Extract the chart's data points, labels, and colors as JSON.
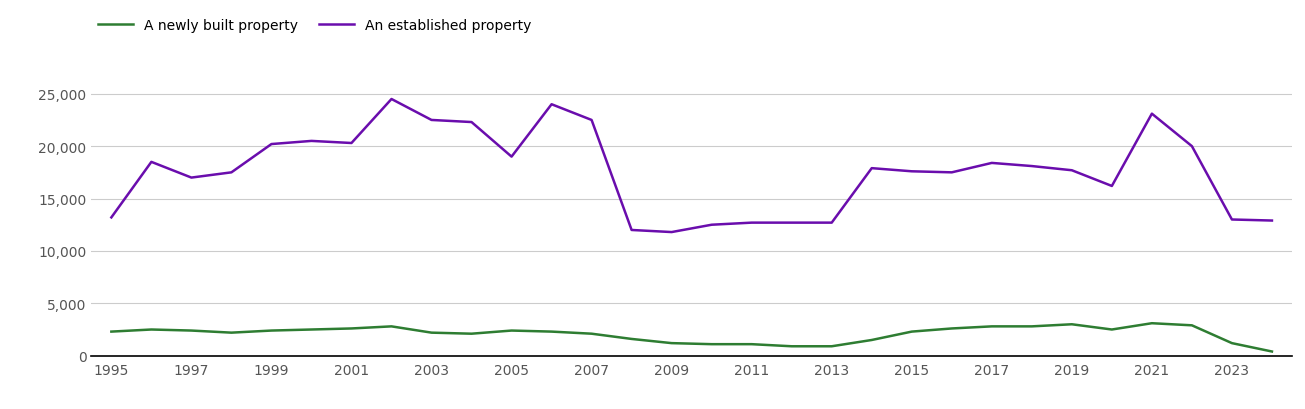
{
  "years": [
    1995,
    1996,
    1997,
    1998,
    1999,
    2000,
    2001,
    2002,
    2003,
    2004,
    2005,
    2006,
    2007,
    2008,
    2009,
    2010,
    2011,
    2012,
    2013,
    2014,
    2015,
    2016,
    2017,
    2018,
    2019,
    2020,
    2021,
    2022,
    2023,
    2024
  ],
  "newly_built": [
    2300,
    2500,
    2400,
    2200,
    2400,
    2500,
    2600,
    2800,
    2200,
    2100,
    2400,
    2300,
    2100,
    1600,
    1200,
    1100,
    1100,
    900,
    900,
    1500,
    2300,
    2600,
    2800,
    2800,
    3000,
    2500,
    3100,
    2900,
    1200,
    400
  ],
  "established": [
    13200,
    18500,
    17000,
    17500,
    20200,
    20500,
    20300,
    24500,
    22500,
    22300,
    19000,
    24000,
    22500,
    12000,
    11800,
    12500,
    12700,
    12700,
    12700,
    17900,
    17600,
    17500,
    18400,
    18100,
    17700,
    16200,
    23100,
    20000,
    13000,
    12900
  ],
  "newly_built_color": "#2e7d32",
  "established_color": "#6a0dad",
  "newly_built_label": "A newly built property",
  "established_label": "An established property",
  "ylim": [
    0,
    27000
  ],
  "yticks": [
    0,
    5000,
    10000,
    15000,
    20000,
    25000
  ],
  "background_color": "#ffffff",
  "gridline_color": "#cccccc",
  "tick_label_color": "#555555",
  "figsize": [
    13.05,
    4.1
  ],
  "dpi": 100
}
